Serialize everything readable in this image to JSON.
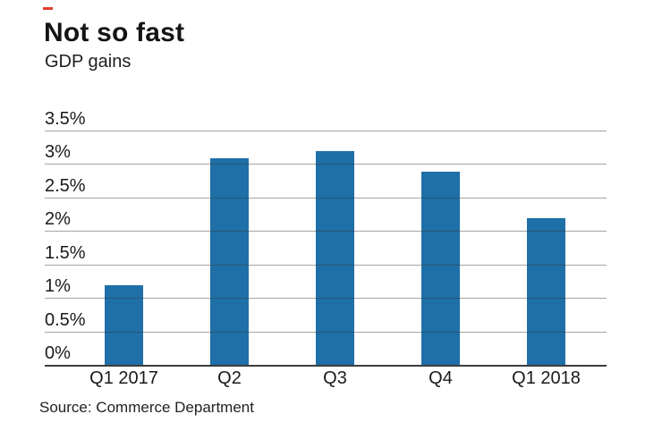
{
  "header": {
    "title": "Not so fast",
    "subtitle": "GDP gains"
  },
  "footer": {
    "source": "Source: Commerce Department"
  },
  "colors": {
    "accent": "#e23b30",
    "bar": "#1f6fa8",
    "gridline": "#9e9e9e",
    "baseline": "#3d3d3d",
    "text": "#1a1a1a"
  },
  "chart_data": {
    "type": "bar",
    "title": "Not so fast",
    "subtitle": "GDP gains",
    "categories": [
      "Q1 2017",
      "Q2",
      "Q3",
      "Q4",
      "Q1 2018"
    ],
    "values": [
      1.2,
      3.1,
      3.2,
      2.9,
      2.2
    ],
    "unit": "%",
    "xlabel": "",
    "ylabel": "",
    "ylim": [
      0,
      3.5
    ],
    "ytick_step": 0.5,
    "ytick_labels": [
      "0%",
      "0.5%",
      "1%",
      "1.5%",
      "2%",
      "2.5%",
      "3%",
      "3.5%"
    ],
    "grid": true,
    "legend": false,
    "source": "Source: Commerce Department"
  }
}
